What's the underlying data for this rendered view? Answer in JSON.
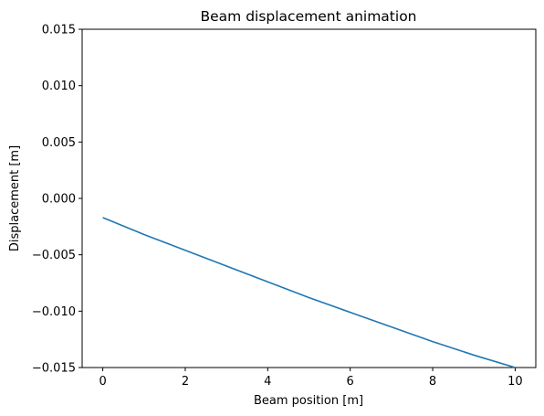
{
  "chart_data": {
    "type": "line",
    "title": "Beam displacement animation",
    "xlabel": "Beam position [m]",
    "ylabel": "Displacement [m]",
    "xlim": [
      -0.5,
      10.5
    ],
    "ylim": [
      -0.015,
      0.015
    ],
    "x_ticks": [
      0,
      2,
      4,
      6,
      8,
      10
    ],
    "x_tick_labels": [
      "0",
      "2",
      "4",
      "6",
      "8",
      "10"
    ],
    "y_ticks": [
      -0.015,
      -0.01,
      -0.005,
      0.0,
      0.005,
      0.01,
      0.015
    ],
    "y_tick_labels": [
      "−0.015",
      "−0.010",
      "−0.005",
      "0.000",
      "0.005",
      "0.010",
      "0.015"
    ],
    "grid": false,
    "legend": "none",
    "series": [
      {
        "color": "#1f77b4",
        "x": [
          0,
          1,
          2,
          3,
          4,
          5,
          6,
          7,
          8,
          9,
          10
        ],
        "y": [
          -0.0017,
          -0.0032,
          -0.0046,
          -0.006,
          -0.0074,
          -0.0088,
          -0.0101,
          -0.0114,
          -0.0127,
          -0.0139,
          -0.015
        ]
      }
    ]
  }
}
